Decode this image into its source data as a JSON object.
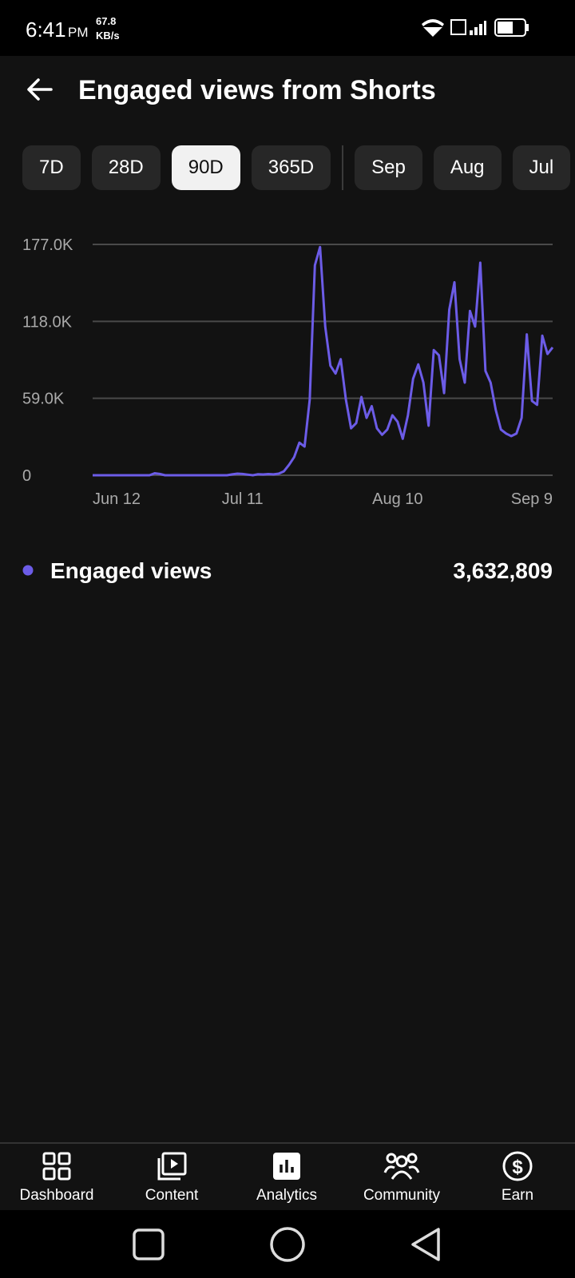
{
  "status_bar": {
    "time": "6:41",
    "period": "PM",
    "speed": "67.8",
    "speed_unit": "KB/s"
  },
  "header": {
    "title": "Engaged views from Shorts"
  },
  "chips": [
    {
      "label": "7D",
      "selected": false
    },
    {
      "label": "28D",
      "selected": false
    },
    {
      "label": "90D",
      "selected": true
    },
    {
      "label": "365D",
      "selected": false
    },
    {
      "label": "Sep",
      "selected": false
    },
    {
      "label": "Aug",
      "selected": false
    },
    {
      "label": "Jul",
      "selected": false
    }
  ],
  "chart_data": {
    "type": "line",
    "categories": [
      "Jun 12",
      null,
      null,
      null,
      null,
      null,
      null,
      null,
      null,
      null,
      null,
      null,
      null,
      null,
      null,
      null,
      null,
      null,
      null,
      null,
      null,
      null,
      null,
      null,
      null,
      null,
      null,
      null,
      null,
      "Jul 11",
      null,
      null,
      null,
      null,
      null,
      null,
      null,
      null,
      null,
      null,
      null,
      null,
      null,
      null,
      null,
      null,
      null,
      null,
      null,
      null,
      null,
      null,
      null,
      null,
      null,
      null,
      null,
      null,
      null,
      "Aug 10",
      null,
      null,
      null,
      null,
      null,
      null,
      null,
      null,
      null,
      null,
      null,
      null,
      null,
      null,
      null,
      null,
      null,
      null,
      null,
      null,
      null,
      null,
      null,
      null,
      null,
      null,
      null,
      null,
      null,
      "Sep 9"
    ],
    "series": [
      {
        "name": "Engaged views",
        "color": "#6c5ce7",
        "values": [
          0,
          0,
          0,
          0,
          0,
          0,
          0,
          0,
          0,
          0,
          0,
          0,
          1500,
          1000,
          0,
          0,
          0,
          0,
          0,
          0,
          0,
          0,
          0,
          0,
          0,
          0,
          0,
          700,
          1200,
          1000,
          500,
          0,
          800,
          600,
          900,
          700,
          1200,
          3000,
          8000,
          14000,
          25000,
          22000,
          58000,
          161000,
          175000,
          114000,
          84000,
          78000,
          89000,
          58000,
          36000,
          40000,
          60000,
          44000,
          53000,
          36000,
          31000,
          35000,
          46000,
          41000,
          28000,
          46000,
          74000,
          85000,
          71000,
          38000,
          96000,
          92000,
          63000,
          127000,
          148000,
          89000,
          71000,
          126000,
          114000,
          163000,
          80000,
          71000,
          50000,
          35000,
          32000,
          30000,
          32000,
          44000,
          108000,
          57000,
          54000,
          107000,
          93000,
          98000
        ]
      }
    ],
    "ylim": [
      0,
      177000
    ],
    "yticks": [
      0,
      {
        "value": 59000,
        "label": "59.0K"
      },
      {
        "value": 118000,
        "label": "118.0K"
      },
      {
        "value": 177000,
        "label": "177.0K"
      }
    ],
    "grid": true
  },
  "summary": {
    "total": "3,632,809"
  },
  "nav": [
    {
      "label": "Dashboard"
    },
    {
      "label": "Content"
    },
    {
      "label": "Analytics"
    },
    {
      "label": "Community"
    },
    {
      "label": "Earn"
    }
  ]
}
